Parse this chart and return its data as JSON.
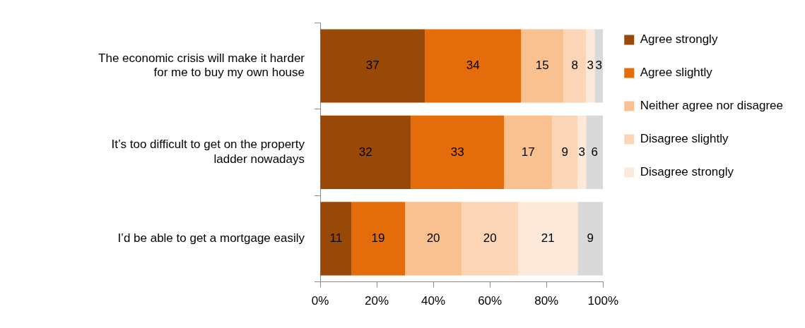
{
  "chart_data": {
    "type": "bar",
    "orientation": "horizontal",
    "stacked": true,
    "categories": [
      "The economic crisis will make it harder for me to buy my own house",
      "It’s too difficult to get on the property ladder nowadays",
      "I’d be able to get a mortgage easily"
    ],
    "series": [
      {
        "name": "Agree strongly",
        "color": "#984807",
        "values": [
          37,
          32,
          11
        ]
      },
      {
        "name": "Agree slightly",
        "color": "#e46c0a",
        "values": [
          34,
          33,
          19
        ]
      },
      {
        "name": "Neither agree nor disagree",
        "color": "#f9c090",
        "values": [
          15,
          17,
          20
        ]
      },
      {
        "name": "Disagree slightly",
        "color": "#fbd5b5",
        "values": [
          8,
          9,
          20
        ]
      },
      {
        "name": "Disagree strongly",
        "color": "#fde9d9",
        "values": [
          3,
          3,
          21
        ]
      },
      {
        "color": "#d9d9d9",
        "values": [
          3,
          6,
          9
        ]
      }
    ],
    "xlim": [
      0,
      100
    ],
    "xticks": [
      {
        "value": 0,
        "label": "0%"
      },
      {
        "value": 20,
        "label": "20%"
      },
      {
        "value": 40,
        "label": "40%"
      },
      {
        "value": 60,
        "label": "60%"
      },
      {
        "value": 80,
        "label": "80%"
      },
      {
        "value": 100,
        "label": "100%"
      }
    ],
    "data_labels": true,
    "grid": false,
    "legend": "right"
  }
}
